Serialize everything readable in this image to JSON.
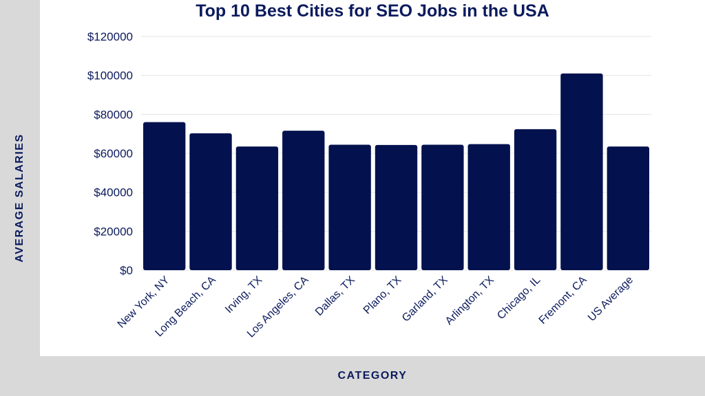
{
  "chart_data": {
    "type": "bar",
    "title": "Top 10 Best Cities for SEO Jobs in the USA",
    "xlabel": "CATEGORY",
    "ylabel": "AVERAGE SALARIES",
    "categories": [
      "New York, NY",
      "Long Beach, CA",
      "Irving, TX",
      "Los Angeles, CA",
      "Dallas, TX",
      "Plano, TX",
      "Garland, TX",
      "Arlington, TX",
      "Chicago, IL",
      "Fremont, CA",
      "US Average"
    ],
    "values": [
      76000,
      70300,
      63500,
      71600,
      64400,
      64300,
      64400,
      64700,
      72400,
      101000,
      63500
    ],
    "ylim": [
      0,
      120000
    ],
    "yticks": [
      0,
      20000,
      40000,
      60000,
      80000,
      100000,
      120000
    ],
    "ytick_labels": [
      "$0",
      "$20000",
      "$40000",
      "$60000",
      "$80000",
      "$100000",
      "$120000"
    ],
    "grid": true,
    "bar_color": "#03124e",
    "text_color": "#0b1a5c"
  }
}
